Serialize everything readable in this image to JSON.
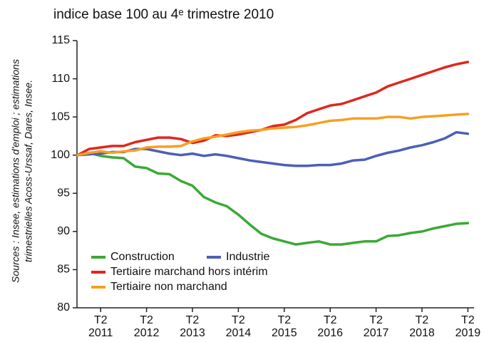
{
  "chart_data": {
    "type": "line",
    "title": "indice base 100 au 4ᵉ trimestre 2010",
    "source": [
      "Sources : Insee, estimations d'emploi ; estimations",
      "trimestrielles Acoss-Urssaf, Dares, Insee."
    ],
    "categories": [
      null,
      null,
      "T2\n2011",
      null,
      null,
      null,
      "T2\n2012",
      null,
      null,
      null,
      "T2\n2013",
      null,
      null,
      null,
      "T2\n2014",
      null,
      null,
      null,
      "T2\n2015",
      null,
      null,
      null,
      "T2\n2016",
      null,
      null,
      null,
      "T2\n2017",
      null,
      null,
      null,
      "T2\n2018",
      null,
      null,
      null,
      "T2\n2019"
    ],
    "series": [
      {
        "name": "Construction",
        "color": "#3aa935",
        "values": [
          100,
          100.3,
          99.9,
          99.7,
          99.6,
          98.5,
          98.3,
          97.6,
          97.5,
          96.6,
          96.0,
          94.5,
          93.8,
          93.3,
          92.2,
          90.9,
          89.7,
          89.1,
          88.7,
          88.3,
          88.5,
          88.7,
          88.3,
          88.3,
          88.5,
          88.7,
          88.7,
          89.4,
          89.5,
          89.8,
          90.0,
          90.4,
          90.7,
          91.0,
          91.1
        ]
      },
      {
        "name": "Industrie",
        "color": "#4c5fb8",
        "values": [
          100,
          100.1,
          100.2,
          100.4,
          100.4,
          100.8,
          100.8,
          100.5,
          100.2,
          100.0,
          100.2,
          99.9,
          100.1,
          99.9,
          99.6,
          99.3,
          99.1,
          98.9,
          98.7,
          98.6,
          98.6,
          98.7,
          98.7,
          98.9,
          99.3,
          99.4,
          99.9,
          100.3,
          100.6,
          101.0,
          101.3,
          101.7,
          102.2,
          103.0,
          102.8
        ]
      },
      {
        "name": "Tertiaire marchand hors intérim",
        "color": "#e0261c",
        "values": [
          100,
          100.8,
          101.0,
          101.2,
          101.2,
          101.7,
          102.0,
          102.3,
          102.3,
          102.1,
          101.6,
          101.9,
          102.6,
          102.5,
          102.7,
          103.0,
          103.3,
          103.8,
          104.0,
          104.6,
          105.5,
          106.0,
          106.5,
          106.7,
          107.2,
          107.7,
          108.2,
          109.0,
          109.5,
          110.0,
          110.5,
          111.0,
          111.5,
          111.9,
          112.2
        ]
      },
      {
        "name": "Tertiaire non marchand",
        "color": "#f7a021",
        "values": [
          100,
          100.3,
          100.5,
          100.3,
          100.5,
          100.6,
          101.0,
          101.1,
          101.1,
          101.2,
          101.8,
          102.2,
          102.4,
          102.7,
          103.0,
          103.2,
          103.3,
          103.5,
          103.6,
          103.7,
          103.9,
          104.2,
          104.5,
          104.6,
          104.8,
          104.8,
          104.8,
          105.0,
          105.0,
          104.8,
          105.0,
          105.1,
          105.2,
          105.3,
          105.4
        ]
      }
    ],
    "ylim": [
      80,
      115
    ],
    "yticks": [
      80,
      85,
      90,
      95,
      100,
      105,
      110,
      115
    ],
    "grid": false,
    "legend": "lower left"
  }
}
